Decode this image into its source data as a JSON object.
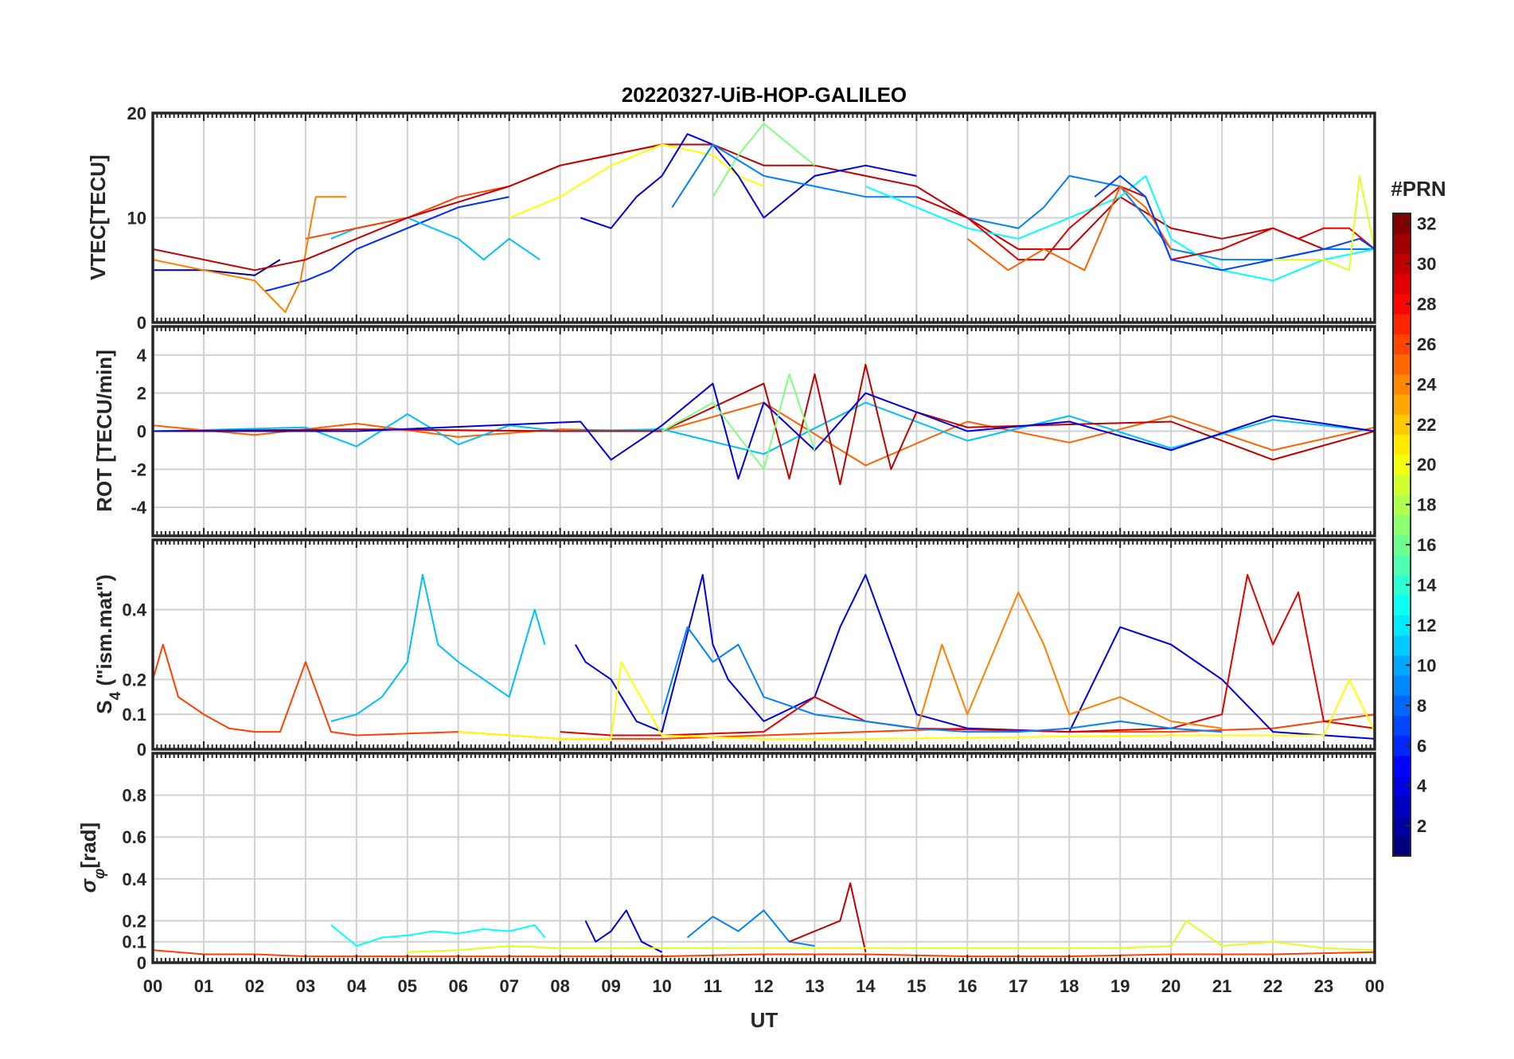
{
  "chart_data": {
    "type": "line",
    "title": "20220327-UiB-HOP-GALILEO",
    "xlabel": "UT",
    "x_tick_labels": [
      "00",
      "01",
      "02",
      "03",
      "04",
      "05",
      "06",
      "07",
      "08",
      "09",
      "10",
      "11",
      "12",
      "13",
      "14",
      "15",
      "16",
      "17",
      "18",
      "19",
      "20",
      "21",
      "22",
      "23",
      "00"
    ],
    "xlim_hours": [
      0,
      24
    ],
    "grid": true,
    "colormap": "jet",
    "colorbar": {
      "label": "#PRN",
      "range": [
        1,
        32
      ],
      "tick_labels": [
        "2",
        "4",
        "6",
        "8",
        "10",
        "12",
        "14",
        "16",
        "18",
        "20",
        "22",
        "24",
        "26",
        "28",
        "30",
        "32"
      ],
      "tick_values": [
        2,
        4,
        6,
        8,
        10,
        12,
        14,
        16,
        18,
        20,
        22,
        24,
        26,
        28,
        30,
        32
      ]
    },
    "panels": [
      {
        "id": "vtec",
        "ylabel": "VTEC[TECU]",
        "ylim": [
          0,
          20
        ],
        "yticks": [
          0,
          10,
          20
        ],
        "ytick_labels": [
          "0",
          "10",
          "20"
        ],
        "series": [
          {
            "color": "#00008f",
            "x": [
              0,
              1,
              2,
              2.5
            ],
            "y": [
              5,
              5,
              4.5,
              6
            ]
          },
          {
            "color": "#002bff",
            "x": [
              2.2,
              3,
              3.5,
              4,
              5,
              6,
              7
            ],
            "y": [
              3,
              4,
              5,
              7,
              9,
              11,
              12
            ]
          },
          {
            "color": "#00bfff",
            "x": [
              3.5,
              4,
              5,
              6,
              6.5,
              7,
              7.6
            ],
            "y": [
              8,
              9,
              10,
              8,
              6,
              8,
              6
            ]
          },
          {
            "color": "#ff4000",
            "x": [
              3,
              3.5,
              4,
              5,
              6,
              7,
              8,
              9,
              10,
              10.8
            ],
            "y": [
              8,
              8.5,
              9,
              10,
              12,
              13,
              15,
              16,
              17,
              17
            ]
          },
          {
            "color": "#ff8000",
            "x": [
              0,
              1,
              2,
              2.6,
              2.9,
              3.2,
              3.8
            ],
            "y": [
              6,
              5,
              4,
              1,
              4,
              12,
              12
            ]
          },
          {
            "color": "#bf0000",
            "x": [
              0,
              1,
              2,
              3,
              5,
              7,
              8,
              9,
              10,
              11,
              12,
              13,
              14,
              15,
              16,
              17,
              18,
              19,
              20,
              21,
              22,
              23,
              24
            ],
            "y": [
              7,
              6,
              5,
              6,
              10,
              13,
              15,
              16,
              17,
              17,
              15,
              15,
              14,
              13,
              10,
              7,
              7,
              12,
              9,
              8,
              9,
              7,
              7
            ]
          },
          {
            "color": "#ffff00",
            "x": [
              7,
              8,
              9,
              10,
              11,
              11.5,
              12
            ],
            "y": [
              10,
              12,
              15,
              17,
              16,
              14,
              13
            ]
          },
          {
            "color": "#0000df",
            "x": [
              8.4,
              9,
              9.5,
              10,
              10.5,
              11,
              11.5,
              12,
              13,
              14,
              15
            ],
            "y": [
              10,
              9,
              12,
              14,
              18,
              17,
              14,
              10,
              14,
              15,
              14
            ]
          },
          {
            "color": "#80ff80",
            "x": [
              11,
              11.5,
              12,
              12.5,
              13
            ],
            "y": [
              12,
              16,
              19,
              17,
              15
            ]
          },
          {
            "color": "#0080ff",
            "x": [
              10.2,
              11,
              12,
              13,
              14,
              15,
              16,
              17,
              17.5,
              18,
              19,
              20,
              21,
              22,
              23,
              24
            ],
            "y": [
              11,
              17,
              14,
              13,
              12,
              12,
              10,
              9,
              11,
              14,
              13,
              7,
              6,
              6,
              7,
              7
            ]
          },
          {
            "color": "#00ffff",
            "x": [
              14,
              15,
              16,
              17,
              18,
              19,
              19.5,
              20,
              21,
              22,
              23,
              24
            ],
            "y": [
              13,
              11,
              9,
              8,
              10,
              12,
              14,
              8,
              5,
              4,
              6,
              7
            ]
          },
          {
            "color": "#df0000",
            "x": [
              15,
              16,
              17,
              17.5,
              18,
              19,
              19.5,
              20,
              21,
              22,
              22.5,
              23,
              23.5,
              24
            ],
            "y": [
              12,
              10,
              6,
              6,
              9,
              13,
              12,
              6,
              7,
              9,
              8,
              9,
              9,
              7
            ]
          },
          {
            "color": "#ff6000",
            "x": [
              16,
              16.8,
              17.5,
              18.3,
              19,
              19.5,
              20
            ],
            "y": [
              8,
              5,
              7,
              5,
              13,
              11,
              7
            ]
          },
          {
            "color": "#0040ff",
            "x": [
              18.5,
              19,
              19.5,
              20,
              21,
              22,
              23,
              23.7,
              24
            ],
            "y": [
              12,
              14,
              12,
              6,
              5,
              6,
              7,
              8,
              7
            ]
          },
          {
            "color": "#dfff20",
            "x": [
              22,
              23,
              23.5,
              23.7,
              24
            ],
            "y": [
              6,
              6,
              5,
              14,
              7
            ]
          }
        ]
      },
      {
        "id": "rot",
        "ylabel": "ROT [TECU/min]",
        "ylim": [
          -5.5,
          5.5
        ],
        "yticks": [
          -4,
          -2,
          0,
          2,
          4
        ],
        "ytick_labels": [
          "-4",
          "-2",
          "0",
          "2",
          "4"
        ],
        "series": [
          {
            "color": "#ff6000",
            "x": [
              0,
              2,
              4,
              6,
              8,
              10,
              12,
              14,
              16,
              18,
              20,
              22,
              24
            ],
            "y": [
              0.3,
              -0.2,
              0.4,
              -0.3,
              0.1,
              0,
              1.5,
              -1.8,
              0.5,
              -0.6,
              0.8,
              -1,
              0.2
            ]
          },
          {
            "color": "#00bfff",
            "x": [
              0,
              3,
              4,
              5,
              6,
              7,
              8,
              10,
              12,
              14,
              16,
              18,
              20,
              22,
              24
            ],
            "y": [
              0,
              0.2,
              -0.8,
              0.9,
              -0.7,
              0.3,
              0,
              0.1,
              -1.2,
              1.5,
              -0.5,
              0.8,
              -0.9,
              0.6,
              0
            ]
          },
          {
            "color": "#bf0000",
            "x": [
              0,
              4,
              8,
              10,
              12,
              12.5,
              13,
              13.5,
              14,
              14.5,
              15,
              16,
              20,
              22,
              24
            ],
            "y": [
              0,
              0.1,
              0,
              0,
              2.5,
              -2.5,
              3,
              -2.8,
              3.5,
              -2,
              1,
              0.2,
              0.5,
              -1.5,
              0
            ]
          },
          {
            "color": "#0000df",
            "x": [
              0,
              4,
              8.4,
              9,
              10,
              11,
              11.5,
              12,
              13,
              14,
              16,
              18,
              20,
              22,
              24
            ],
            "y": [
              0,
              0,
              0.5,
              -1.5,
              0.3,
              2.5,
              -2.5,
              1.5,
              -1,
              2,
              0,
              0.5,
              -1,
              0.8,
              0
            ]
          },
          {
            "color": "#80ff80",
            "x": [
              10,
              11,
              12,
              12.5,
              13
            ],
            "y": [
              0,
              1.5,
              -2,
              3,
              -1
            ]
          }
        ]
      },
      {
        "id": "s4",
        "ylabel": "S4 (\"ism.mat\")",
        "ylim": [
          0,
          0.6
        ],
        "yticks": [
          0,
          0.1,
          0.2,
          0.4
        ],
        "ytick_labels": [
          "0",
          "0.1",
          "0.2",
          "0.4"
        ],
        "series": [
          {
            "color": "#ff4000",
            "x": [
              0,
              0.2,
              0.5,
              1,
              1.5,
              2,
              2.5,
              3,
              3.5,
              4,
              6,
              8,
              10,
              12,
              14,
              16,
              18,
              20,
              22,
              24
            ],
            "y": [
              0.2,
              0.3,
              0.15,
              0.1,
              0.06,
              0.05,
              0.05,
              0.25,
              0.05,
              0.04,
              0.05,
              0.03,
              0.03,
              0.04,
              0.05,
              0.06,
              0.05,
              0.05,
              0.06,
              0.1
            ]
          },
          {
            "color": "#00bfff",
            "x": [
              3.5,
              4,
              4.5,
              5,
              5.3,
              5.6,
              6,
              6.5,
              7,
              7.5,
              7.7
            ],
            "y": [
              0.08,
              0.1,
              0.15,
              0.25,
              0.5,
              0.3,
              0.25,
              0.2,
              0.15,
              0.4,
              0.3
            ]
          },
          {
            "color": "#0000df",
            "x": [
              8.3,
              8.5,
              9,
              9.5,
              10,
              10.8,
              11,
              11.3,
              12,
              13,
              13.5,
              14,
              14.5,
              15,
              16,
              18,
              19,
              20,
              21,
              22,
              24
            ],
            "y": [
              0.3,
              0.25,
              0.2,
              0.08,
              0.05,
              0.5,
              0.3,
              0.2,
              0.08,
              0.15,
              0.35,
              0.5,
              0.3,
              0.1,
              0.06,
              0.05,
              0.35,
              0.3,
              0.2,
              0.05,
              0.03
            ]
          },
          {
            "color": "#df0000",
            "x": [
              8,
              9,
              10,
              12,
              13,
              14,
              15,
              18,
              20,
              21,
              21.5,
              22,
              22.5,
              23,
              24
            ],
            "y": [
              0.05,
              0.04,
              0.04,
              0.05,
              0.15,
              0.08,
              0.06,
              0.05,
              0.06,
              0.1,
              0.5,
              0.3,
              0.45,
              0.08,
              0.06
            ]
          },
          {
            "color": "#ff8000",
            "x": [
              15,
              15.5,
              16,
              17,
              17.5,
              18,
              19,
              20,
              21
            ],
            "y": [
              0.05,
              0.3,
              0.1,
              0.45,
              0.3,
              0.1,
              0.15,
              0.08,
              0.06
            ]
          },
          {
            "color": "#0080ff",
            "x": [
              10,
              10.5,
              11,
              11.5,
              12,
              13,
              14,
              15,
              16,
              17,
              18,
              19,
              20,
              21
            ],
            "y": [
              0.1,
              0.35,
              0.25,
              0.3,
              0.15,
              0.1,
              0.08,
              0.06,
              0.05,
              0.05,
              0.06,
              0.08,
              0.06,
              0.05
            ]
          },
          {
            "color": "#ffff00",
            "x": [
              6,
              7,
              8,
              9,
              9.2,
              10,
              12,
              14,
              20,
              23,
              23.5,
              24
            ],
            "y": [
              0.05,
              0.04,
              0.03,
              0.03,
              0.25,
              0.04,
              0.03,
              0.03,
              0.04,
              0.04,
              0.2,
              0.05
            ]
          }
        ]
      },
      {
        "id": "sigma",
        "ylabel": "σφ[rad]",
        "ylim": [
          0,
          1
        ],
        "yticks": [
          0,
          0.1,
          0.2,
          0.4,
          0.6,
          0.8
        ],
        "ytick_labels": [
          "0",
          "0.1",
          "0.2",
          "0.4",
          "0.6",
          "0.8"
        ],
        "series": [
          {
            "color": "#ff4000",
            "x": [
              0,
              1,
              2,
              3,
              4,
              5,
              8,
              10,
              12,
              14,
              16,
              18,
              20,
              22,
              24
            ],
            "y": [
              0.06,
              0.04,
              0.04,
              0.03,
              0.03,
              0.03,
              0.03,
              0.03,
              0.04,
              0.04,
              0.03,
              0.03,
              0.04,
              0.04,
              0.05
            ]
          },
          {
            "color": "#00ffff",
            "x": [
              3.5,
              4,
              4.5,
              5,
              5.5,
              6,
              6.5,
              7,
              7.5,
              7.7
            ],
            "y": [
              0.18,
              0.08,
              0.12,
              0.13,
              0.15,
              0.14,
              0.16,
              0.15,
              0.18,
              0.12
            ]
          },
          {
            "color": "#0000df",
            "x": [
              8.5,
              8.7,
              9,
              9.3,
              9.6,
              10
            ],
            "y": [
              0.2,
              0.1,
              0.15,
              0.25,
              0.1,
              0.05
            ]
          },
          {
            "color": "#0080ff",
            "x": [
              10.5,
              11,
              11.5,
              12,
              12.5,
              13
            ],
            "y": [
              0.12,
              0.22,
              0.15,
              0.25,
              0.1,
              0.08
            ]
          },
          {
            "color": "#bf0000",
            "x": [
              12.5,
              13,
              13.5,
              13.7,
              14
            ],
            "y": [
              0.1,
              0.15,
              0.2,
              0.38,
              0.05
            ]
          },
          {
            "color": "#dfff20",
            "x": [
              5,
              6,
              7,
              8,
              19,
              20,
              20.3,
              21,
              22,
              23,
              24
            ],
            "y": [
              0.05,
              0.06,
              0.08,
              0.07,
              0.07,
              0.08,
              0.2,
              0.08,
              0.1,
              0.07,
              0.06
            ]
          }
        ]
      }
    ]
  }
}
